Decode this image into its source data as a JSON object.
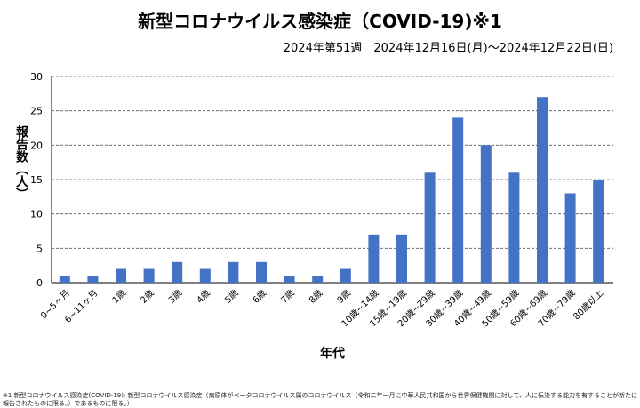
{
  "chart_data": {
    "type": "bar",
    "title": "新型コロナウイルス感染症（COVID-19)※1",
    "subtitle": "2024年第51週　2024年12月16日(月)～2024年12月22日(日)",
    "xlabel": "年代",
    "ylabel": "報告数（人）",
    "ylim": [
      0,
      30
    ],
    "yticks": [
      0,
      5,
      10,
      15,
      20,
      25,
      30
    ],
    "grid": true,
    "color": "#4472c4",
    "categories": [
      "0~5ヶ月",
      "6~11ヶ月",
      "1歳",
      "2歳",
      "3歳",
      "4歳",
      "5歳",
      "6歳",
      "7歳",
      "8歳",
      "9歳",
      "10歳~14歳",
      "15歳~19歳",
      "20歳~29歳",
      "30歳~39歳",
      "40歳~49歳",
      "50歳~59歳",
      "60歳~69歳",
      "70歳~79歳",
      "80歳以上"
    ],
    "values": [
      1,
      1,
      2,
      2,
      3,
      2,
      3,
      3,
      1,
      1,
      2,
      7,
      7,
      16,
      24,
      20,
      16,
      27,
      13,
      15
    ]
  },
  "footnote": "※1 新型コロナウイルス感染症(COVID-19): 新型コロナウイルス感染症（病原体がベータコロナウイルス属のコロナウイルス（令和二年一月に中華人民共和国から世界保健機関に対して、人に伝染する能力を有することが新たに報告されたものに限る。）であるものに限る。）"
}
